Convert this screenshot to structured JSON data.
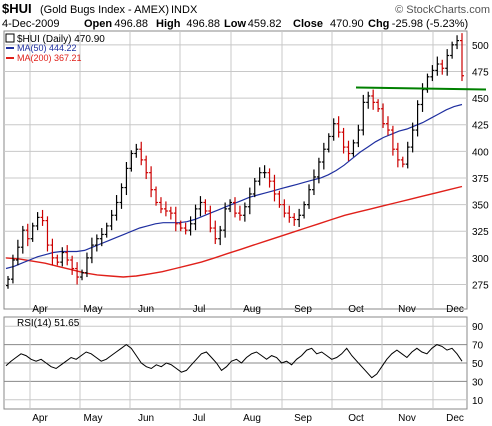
{
  "header": {
    "symbol": "$HUI",
    "name": "(Gold Bugs Index - AMEX)",
    "exchange": "INDX",
    "brand": "© StockCharts.com",
    "date": "4-Dec-2009",
    "quote": [
      {
        "label": "Open",
        "value": "496.88"
      },
      {
        "label": "High",
        "value": "496.88"
      },
      {
        "label": "Low",
        "value": "459.82"
      },
      {
        "label": "Close",
        "value": "470.90"
      },
      {
        "label": "Chg",
        "value": "-25.98 (-5.23%)"
      }
    ]
  },
  "legend": {
    "price": "$HUI (Daily) 470.90",
    "ma50": "MA(50) 444.22",
    "ma200": "MA(200) 367.21"
  },
  "rsi_legend": "RSI(14) 51.65",
  "colors": {
    "background": "#ffffff",
    "grid": "#c8c8c8",
    "up_bar": "#000000",
    "down_bar": "#cc0000",
    "ma50": "#1f2fa0",
    "ma200": "#e0201a",
    "resistance": "#008000",
    "rsi_line": "#000000"
  },
  "chart_data": [
    {
      "type": "line",
      "title": "$HUI (Gold Bugs Index - AMEX) INDX",
      "x_labels": [
        "Apr",
        "May",
        "Jun",
        "Jul",
        "Aug",
        "Sep",
        "Oct",
        "Nov",
        "Dec"
      ],
      "y_ticks": [
        275,
        300,
        325,
        350,
        375,
        400,
        425,
        450,
        475,
        500
      ],
      "ylim": [
        252,
        513
      ],
      "grid": true,
      "legend_position": "top-left",
      "price_closes": [
        280,
        298,
        310,
        326,
        318,
        330,
        338,
        335,
        312,
        300,
        296,
        305,
        298,
        290,
        282,
        286,
        300,
        312,
        318,
        322,
        330,
        340,
        352,
        366,
        384,
        398,
        402,
        392,
        380,
        364,
        352,
        346,
        344,
        342,
        332,
        328,
        326,
        332,
        346,
        352,
        344,
        328,
        318,
        326,
        346,
        352,
        342,
        340,
        348,
        360,
        372,
        380,
        380,
        372,
        360,
        350,
        342,
        338,
        336,
        340,
        350,
        364,
        376,
        390,
        402,
        414,
        426,
        418,
        404,
        398,
        408,
        420,
        446,
        452,
        446,
        440,
        426,
        420,
        402,
        392,
        388,
        404,
        420,
        444,
        458,
        470,
        476,
        482,
        478,
        490,
        500,
        504,
        471
      ],
      "resistance_level": 459,
      "series": [
        {
          "name": "MA(50)",
          "values": [
            290,
            292,
            295,
            298,
            301,
            303,
            305,
            306,
            306,
            306,
            307,
            310,
            313,
            316,
            319,
            322,
            325,
            328,
            330,
            332,
            333,
            333,
            333,
            334,
            336,
            339,
            342,
            345,
            348,
            351,
            354,
            357,
            359,
            361,
            363,
            365,
            367,
            369,
            371,
            373,
            375,
            378,
            382,
            387,
            393,
            399,
            404,
            409,
            413,
            416,
            419,
            421,
            424,
            427,
            431,
            435,
            439,
            442,
            444
          ]
        },
        {
          "name": "MA(200)",
          "values": [
            300,
            299,
            297,
            295,
            292,
            289,
            286,
            284,
            283,
            282,
            283,
            285,
            287,
            290,
            293,
            296,
            300,
            304,
            308,
            312,
            316,
            320,
            324,
            328,
            332,
            336,
            340,
            343,
            346,
            349,
            352,
            355,
            358,
            361,
            364,
            367
          ]
        }
      ]
    },
    {
      "type": "line",
      "title": "RSI(14) 51.65",
      "x_labels": [
        "Apr",
        "May",
        "Jun",
        "Jul",
        "Aug",
        "Sep",
        "Oct",
        "Nov",
        "Dec"
      ],
      "y_ticks": [
        10,
        30,
        50,
        70,
        90
      ],
      "ylim": [
        0,
        100
      ],
      "reference_lines": [
        30,
        50,
        70
      ],
      "series": [
        {
          "name": "RSI(14)",
          "values": [
            47,
            52,
            56,
            60,
            58,
            54,
            52,
            54,
            50,
            46,
            44,
            48,
            52,
            56,
            54,
            58,
            62,
            60,
            56,
            52,
            54,
            58,
            62,
            66,
            70,
            66,
            58,
            50,
            46,
            44,
            48,
            46,
            50,
            48,
            44,
            40,
            42,
            48,
            54,
            60,
            62,
            56,
            50,
            42,
            46,
            52,
            54,
            50,
            56,
            60,
            62,
            58,
            54,
            58,
            56,
            50,
            52,
            48,
            54,
            58,
            64,
            66,
            60,
            62,
            58,
            54,
            56,
            60,
            66,
            58,
            52,
            46,
            40,
            34,
            38,
            46,
            54,
            60,
            64,
            60,
            56,
            62,
            66,
            62,
            60,
            66,
            70,
            68,
            64,
            66,
            60,
            52
          ]
        }
      ]
    }
  ]
}
